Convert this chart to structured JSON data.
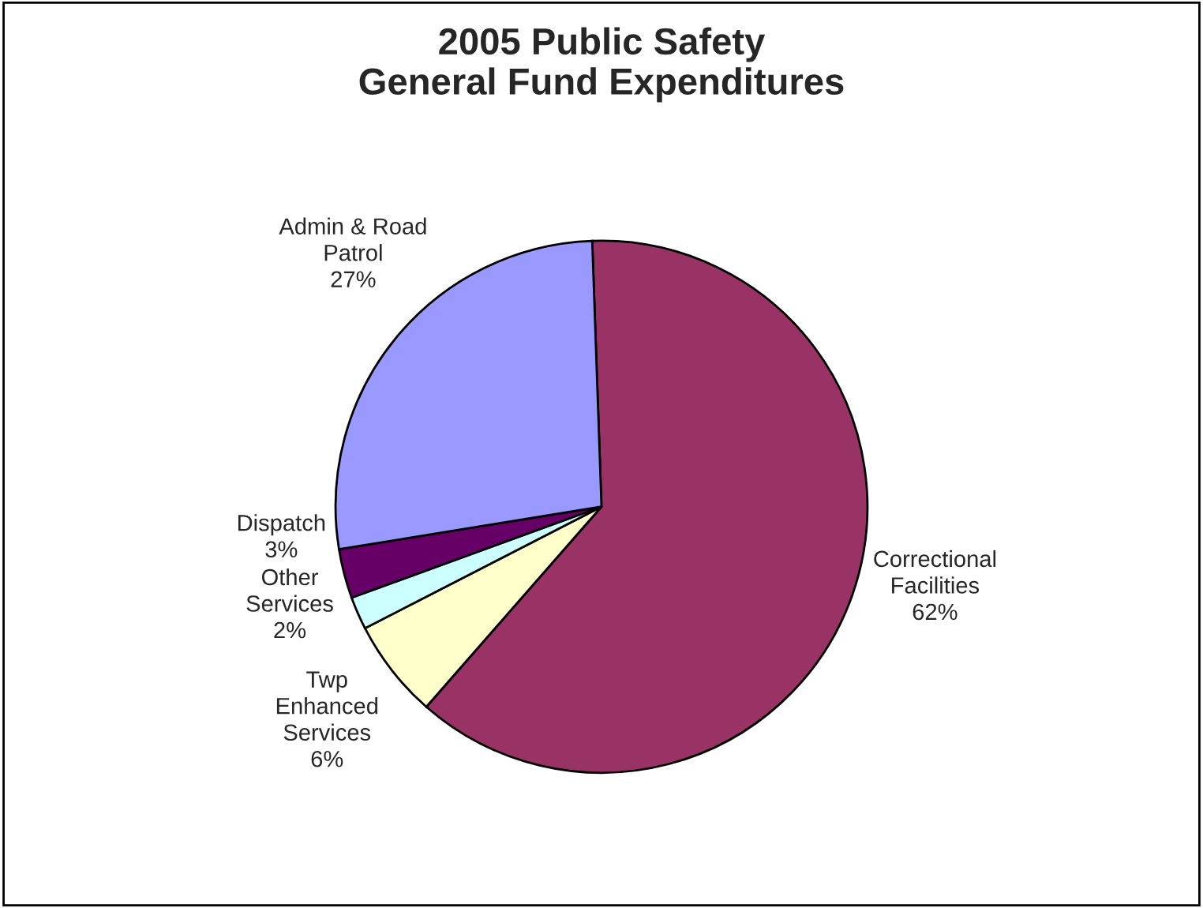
{
  "chart_data": {
    "type": "pie",
    "title": "2005 Public Safety\nGeneral Fund Expenditures",
    "categories": [
      "Correctional\nFacilities",
      "Twp\nEnhanced\nServices",
      "Other\nServices",
      "Dispatch",
      "Admin & Road\nPatrol"
    ],
    "values": [
      62,
      6,
      2,
      3,
      27
    ],
    "value_labels": [
      "62%",
      "6%",
      "2%",
      "3%",
      "27%"
    ],
    "colors": [
      "#993366",
      "#ffffcc",
      "#ccffff",
      "#660066",
      "#9999ff"
    ]
  }
}
